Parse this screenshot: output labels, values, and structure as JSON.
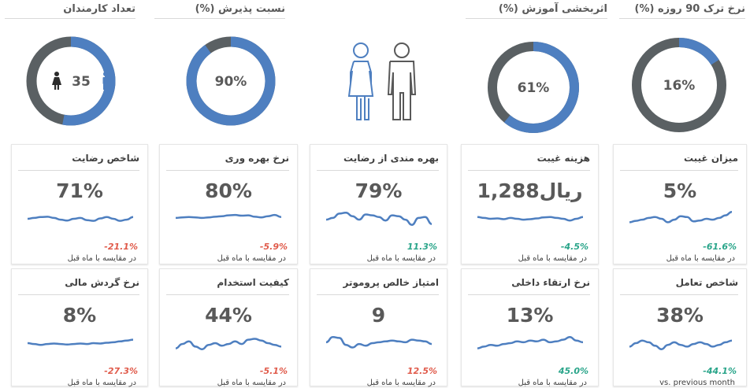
{
  "colors": {
    "accent_blue": "#4e7fc0",
    "track_gray": "#5a6063",
    "negative": "#e05b4b",
    "positive": "#2aa58a",
    "text": "#595959"
  },
  "top_kpis": [
    {
      "title": "تعداد کارمندان",
      "value": "35",
      "fill_fraction": 0.53,
      "female_icon": "female-person-icon",
      "male_icon": "male-person-icon"
    },
    {
      "title": "نسبت پذیرش (%)",
      "value": "90%",
      "fill_fraction": 0.9
    },
    {
      "image": "female-male-outline-icons"
    },
    {
      "title": "اثربخشی آموزش (%)",
      "value": "61%",
      "fill_fraction": 0.61
    },
    {
      "title": "نرخ ترک 90 روزه (%)",
      "value": "16%",
      "fill_fraction": 0.16
    }
  ],
  "cards_row1": [
    {
      "title": "شاخص رضایت",
      "value": "71%",
      "change": "-21.1%",
      "trend": "negative",
      "compare": "در مقایسه با ماه قبل",
      "spark": [
        0.5,
        0.45,
        0.4,
        0.38,
        0.45,
        0.55,
        0.6,
        0.5,
        0.45,
        0.58,
        0.62,
        0.48,
        0.4,
        0.5,
        0.62,
        0.55,
        0.4
      ]
    },
    {
      "title": "نرخ بهره وری",
      "value": "80%",
      "change": "-5.9%",
      "trend": "negative",
      "compare": "در مقایسه با ماه قبل",
      "spark": [
        0.45,
        0.42,
        0.4,
        0.42,
        0.45,
        0.42,
        0.38,
        0.35,
        0.3,
        0.28,
        0.32,
        0.3,
        0.38,
        0.42,
        0.35,
        0.28,
        0.4
      ]
    },
    {
      "title": "بهره مندی از رضایت",
      "value": "79%",
      "change": "11.3%",
      "trend": "positive",
      "compare": "در مقایسه با ماه قبل",
      "spark": [
        0.55,
        0.45,
        0.2,
        0.15,
        0.35,
        0.55,
        0.25,
        0.3,
        0.4,
        0.6,
        0.3,
        0.35,
        0.55,
        0.85,
        0.45,
        0.4,
        0.8
      ]
    },
    {
      "title": "هزینه غیبت",
      "value": "1,288ریال",
      "change": "-4.5%",
      "trend": "positive",
      "compare": "در مقایسه با ماه قبل",
      "spark": [
        0.4,
        0.45,
        0.5,
        0.48,
        0.52,
        0.45,
        0.5,
        0.55,
        0.52,
        0.48,
        0.42,
        0.4,
        0.45,
        0.5,
        0.6,
        0.5,
        0.4
      ]
    },
    {
      "title": "میزان غیبت",
      "value": "5%",
      "change": "-61.6%",
      "trend": "positive",
      "compare": "در مقایسه با ماه قبل",
      "spark": [
        0.7,
        0.62,
        0.55,
        0.45,
        0.4,
        0.5,
        0.7,
        0.55,
        0.35,
        0.4,
        0.65,
        0.6,
        0.5,
        0.55,
        0.45,
        0.3,
        0.1
      ]
    }
  ],
  "cards_row2": [
    {
      "title": "نرخ گردش مالی",
      "value": "8%",
      "change": "-27.3%",
      "trend": "negative",
      "compare": "در مقایسه با ماه قبل",
      "spark": [
        0.5,
        0.55,
        0.6,
        0.55,
        0.52,
        0.55,
        0.58,
        0.55,
        0.52,
        0.55,
        0.5,
        0.52,
        0.48,
        0.45,
        0.4,
        0.35,
        0.3
      ]
    },
    {
      "title": "کیفیت استخدام",
      "value": "44%",
      "change": "-5.1%",
      "trend": "negative",
      "compare": "در مقایسه با ماه قبل",
      "spark": [
        0.8,
        0.55,
        0.4,
        0.7,
        0.85,
        0.6,
        0.5,
        0.65,
        0.55,
        0.4,
        0.55,
        0.3,
        0.25,
        0.35,
        0.5,
        0.6,
        0.7
      ]
    },
    {
      "title": "امتیاز خالص پروموتر",
      "value": "9",
      "change": "12.5%",
      "trend": "negative",
      "compare": "در مقایسه با ماه قبل",
      "spark": [
        0.45,
        0.15,
        0.2,
        0.6,
        0.75,
        0.55,
        0.65,
        0.5,
        0.45,
        0.4,
        0.35,
        0.4,
        0.45,
        0.3,
        0.35,
        0.4,
        0.55
      ]
    },
    {
      "title": "نرخ ارتقاء داخلی",
      "value": "13%",
      "change": "45.0%",
      "trend": "positive",
      "compare": "در مقایسه با ماه قبل",
      "spark": [
        0.8,
        0.7,
        0.6,
        0.65,
        0.55,
        0.5,
        0.4,
        0.45,
        0.35,
        0.4,
        0.3,
        0.45,
        0.4,
        0.3,
        0.15,
        0.35,
        0.45
      ]
    },
    {
      "title": "شاخص تعامل",
      "value": "38%",
      "change": "-44.1%",
      "trend": "positive",
      "compare": "vs. previous month",
      "spark": [
        0.7,
        0.5,
        0.35,
        0.45,
        0.65,
        0.85,
        0.6,
        0.45,
        0.6,
        0.7,
        0.55,
        0.45,
        0.55,
        0.7,
        0.6,
        0.45,
        0.35
      ]
    }
  ]
}
